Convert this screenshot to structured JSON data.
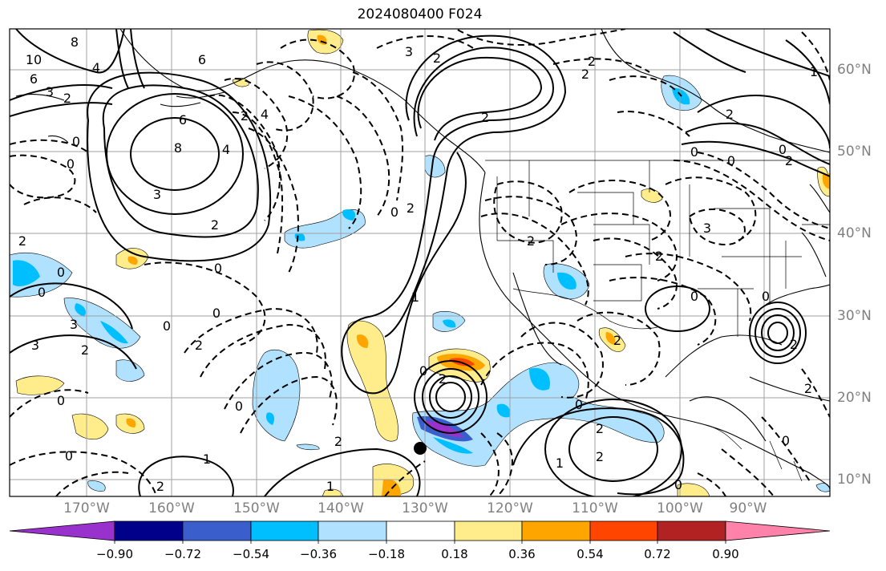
{
  "title": "2024080400 F024",
  "lon_labels": [
    "170°W",
    "160°W",
    "150°W",
    "140°W",
    "130°W",
    "120°W",
    "110°W",
    "100°W",
    "90°W"
  ],
  "lat_labels": [
    "60°N",
    "50°N",
    "40°N",
    "30°N",
    "20°N",
    "10°N"
  ],
  "colorbar": {
    "ticks": [
      "−0.90",
      "−0.72",
      "−0.54",
      "−0.36",
      "−0.18",
      "0.18",
      "0.36",
      "0.54",
      "0.72",
      "0.90"
    ],
    "colors": [
      "#9932cc",
      "#00008b",
      "#3a5fcd",
      "#00bfff",
      "#b0e2ff",
      "#ffffff",
      "#ffec8b",
      "#ffa500",
      "#ff4500",
      "#b22222",
      "#ff82ab"
    ]
  },
  "contour_labels": [
    "10",
    "8",
    "6",
    "3",
    "2",
    "4",
    "6",
    "3",
    "2",
    "2",
    "2",
    "4",
    "6",
    "8",
    "4",
    "2",
    "3",
    "0",
    "0",
    "2",
    "2",
    "0",
    "2",
    "0",
    "2",
    "2",
    "2",
    "1",
    "3",
    "2",
    "0",
    "0",
    "0",
    "2",
    "1",
    "0",
    "0",
    "0",
    "0",
    "2",
    "3",
    "3",
    "2",
    "0",
    "0",
    "0",
    "1",
    "2",
    "2",
    "1",
    "0",
    "2",
    "0",
    "2",
    "2",
    "0",
    "1",
    "2",
    "2",
    "2",
    "0",
    "0",
    "0"
  ]
}
